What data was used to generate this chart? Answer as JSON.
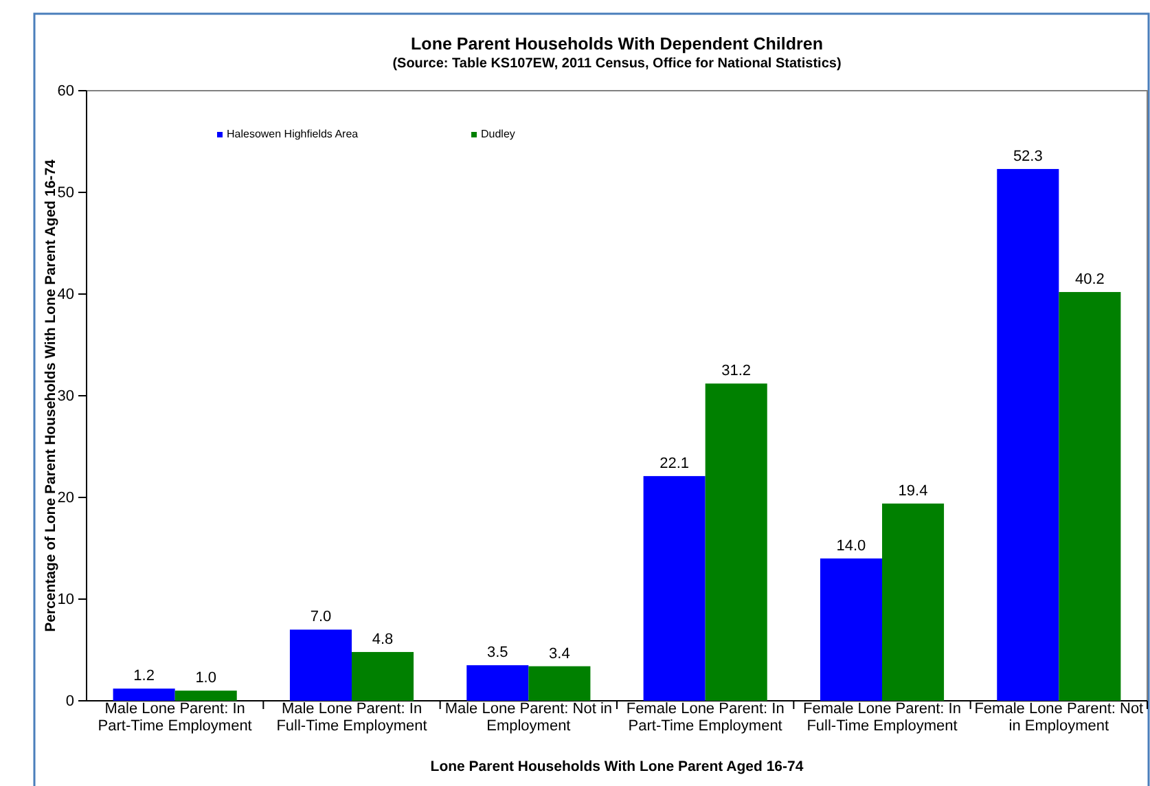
{
  "chart_data": {
    "type": "bar",
    "title": "Lone Parent Households With Dependent Children",
    "subtitle": "(Source: Table KS107EW, 2011 Census, Office for National Statistics)",
    "xlabel": "Lone Parent Households With Lone Parent Aged 16-74",
    "ylabel": "Percentage of Lone Parent Households With Lone Parent Aged 16-74",
    "categories": [
      "Male Lone Parent: In Part-Time Employment",
      "Male Lone Parent: In Full-Time Employment",
      "Male Lone Parent: Not in Employment",
      "Female Lone Parent: In Part-Time Employment",
      "Female Lone Parent: In Full-Time Employment",
      "Female Lone Parent: Not in Employment"
    ],
    "series": [
      {
        "name": "Halesowen Highfields Area",
        "color": "#0000ff",
        "values": [
          1.2,
          7.0,
          3.5,
          22.1,
          14.0,
          52.3
        ],
        "value_labels": [
          "1.2",
          "7.0",
          "3.5",
          "22.1",
          "14.0",
          "52.3"
        ]
      },
      {
        "name": "Dudley",
        "color": "#008000",
        "values": [
          1.0,
          4.8,
          3.4,
          31.2,
          19.4,
          40.2
        ],
        "value_labels": [
          "1.0",
          "4.8",
          "3.4",
          "31.2",
          "19.4",
          "40.2"
        ]
      }
    ],
    "ylim": [
      0,
      60
    ],
    "yticks": [
      0,
      10,
      20,
      30,
      40,
      50,
      60
    ],
    "legend": "top left"
  }
}
